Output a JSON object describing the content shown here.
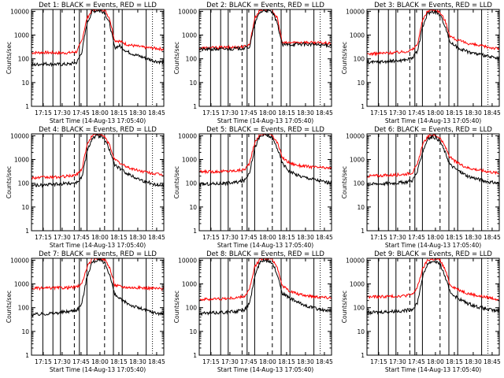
{
  "figure": {
    "x_tick_labels": [
      "17:15",
      "17:30",
      "17:45",
      "18:00",
      "18:15",
      "18:30",
      "18:45"
    ],
    "y_tick_labels": [
      "1",
      "10",
      "100",
      "1000",
      "10000"
    ],
    "ylabel": "Counts/sec",
    "xlabel": "Start Time (14-Aug-13 17:05:40)",
    "colors": {
      "events": "#000000",
      "lld": "#ff0000",
      "axes": "#000000",
      "background": "#ffffff"
    }
  },
  "chart_data": [
    {
      "type": "line",
      "title": "Det 1: BLACK = Events, RED = LLD",
      "xlabel": "Start Time (14-Aug-13 17:05:40)",
      "ylabel": "Counts/sec",
      "x_range_minutes_after_start": [
        0,
        105
      ],
      "y_range": [
        1,
        12000
      ],
      "y_scale": "log",
      "grid": false,
      "legend": "none",
      "events_x": [
        0,
        10,
        16,
        22,
        30,
        36,
        40,
        44,
        48,
        52,
        55,
        58,
        62,
        66,
        70,
        76,
        82,
        90,
        98,
        105
      ],
      "events_y": [
        55,
        62,
        60,
        58,
        60,
        70,
        200,
        3000,
        9500,
        11000,
        10500,
        9000,
        3000,
        300,
        350,
        200,
        150,
        110,
        80,
        70
      ],
      "lld_y": [
        180,
        185,
        180,
        175,
        180,
        200,
        600,
        5000,
        11000,
        12000,
        12000,
        11500,
        5000,
        600,
        550,
        400,
        350,
        300,
        280,
        250
      ]
    },
    {
      "type": "line",
      "title": "Det 2: BLACK = Events, RED = LLD",
      "xlabel": "Start Time (14-Aug-13 17:05:40)",
      "ylabel": "Counts/sec",
      "x_range_minutes_after_start": [
        0,
        105
      ],
      "y_range": [
        1,
        12000
      ],
      "y_scale": "log",
      "grid": false,
      "legend": "none",
      "events_x": [
        0,
        10,
        20,
        30,
        36,
        40,
        44,
        48,
        52,
        55,
        58,
        62,
        66,
        72,
        80,
        90,
        98,
        105
      ],
      "events_y": [
        250,
        250,
        260,
        270,
        280,
        320,
        3000,
        9000,
        11000,
        10500,
        9000,
        3000,
        380,
        400,
        420,
        400,
        380,
        360
      ],
      "lld_y": [
        280,
        290,
        300,
        310,
        330,
        400,
        5000,
        11000,
        12000,
        12000,
        11500,
        5000,
        450,
        480,
        500,
        480,
        460,
        440
      ]
    },
    {
      "type": "line",
      "title": "Det 3: BLACK = Events, RED = LLD",
      "xlabel": "Start Time (14-Aug-13 17:05:40)",
      "ylabel": "Counts/sec",
      "x_range_minutes_after_start": [
        0,
        105
      ],
      "y_range": [
        1,
        12000
      ],
      "y_scale": "log",
      "grid": false,
      "legend": "none",
      "events_x": [
        0,
        10,
        20,
        30,
        36,
        40,
        44,
        48,
        52,
        55,
        58,
        62,
        66,
        72,
        80,
        90,
        98,
        105
      ],
      "events_y": [
        70,
        75,
        80,
        90,
        110,
        200,
        2000,
        8000,
        10000,
        9000,
        7000,
        2500,
        500,
        300,
        200,
        150,
        120,
        100
      ],
      "lld_y": [
        160,
        170,
        180,
        200,
        240,
        400,
        4000,
        10000,
        12000,
        11000,
        9000,
        4000,
        900,
        600,
        450,
        350,
        300,
        260
      ]
    },
    {
      "type": "line",
      "title": "Det 4: BLACK = Events, RED = LLD",
      "xlabel": "Start Time (14-Aug-13 17:05:40)",
      "ylabel": "Counts/sec",
      "x_range_minutes_after_start": [
        0,
        105
      ],
      "y_range": [
        1,
        12000
      ],
      "y_scale": "log",
      "grid": false,
      "legend": "none",
      "events_x": [
        0,
        10,
        20,
        30,
        36,
        40,
        44,
        48,
        52,
        55,
        58,
        62,
        66,
        72,
        80,
        90,
        98,
        105
      ],
      "events_y": [
        80,
        85,
        90,
        100,
        110,
        180,
        2000,
        8000,
        10000,
        9000,
        7000,
        2500,
        600,
        350,
        200,
        120,
        90,
        80
      ],
      "lld_y": [
        170,
        175,
        180,
        200,
        230,
        400,
        4000,
        10000,
        12000,
        11000,
        9000,
        4000,
        1000,
        600,
        400,
        300,
        250,
        220
      ]
    },
    {
      "type": "line",
      "title": "Det 5: BLACK = Events, RED = LLD",
      "xlabel": "Start Time (14-Aug-13 17:05:40)",
      "ylabel": "Counts/sec",
      "x_range_minutes_after_start": [
        0,
        105
      ],
      "y_range": [
        1,
        12000
      ],
      "y_scale": "log",
      "grid": false,
      "legend": "none",
      "events_x": [
        0,
        10,
        20,
        30,
        36,
        40,
        44,
        48,
        52,
        55,
        58,
        62,
        66,
        72,
        80,
        90,
        98,
        105
      ],
      "events_y": [
        90,
        95,
        100,
        110,
        130,
        300,
        3000,
        9000,
        11000,
        10000,
        8000,
        3000,
        700,
        300,
        200,
        150,
        120,
        100
      ],
      "lld_y": [
        300,
        310,
        320,
        340,
        380,
        700,
        5000,
        11000,
        12000,
        12000,
        11000,
        5000,
        1200,
        700,
        550,
        480,
        450,
        420
      ]
    },
    {
      "type": "line",
      "title": "Det 6: BLACK = Events, RED = LLD",
      "xlabel": "Start Time (14-Aug-13 17:05:40)",
      "ylabel": "Counts/sec",
      "x_range_minutes_after_start": [
        0,
        105
      ],
      "y_range": [
        1,
        12000
      ],
      "y_scale": "log",
      "grid": false,
      "legend": "none",
      "events_x": [
        0,
        10,
        20,
        30,
        36,
        40,
        44,
        48,
        52,
        55,
        58,
        62,
        66,
        72,
        80,
        90,
        98,
        105
      ],
      "events_y": [
        90,
        95,
        100,
        110,
        130,
        300,
        2000,
        7000,
        9000,
        8000,
        6000,
        2000,
        600,
        350,
        200,
        140,
        110,
        100
      ],
      "lld_y": [
        200,
        210,
        220,
        240,
        280,
        600,
        4000,
        9000,
        11000,
        10000,
        8000,
        3500,
        1200,
        700,
        450,
        350,
        300,
        260
      ]
    },
    {
      "type": "line",
      "title": "Det 7: BLACK = Events, RED = LLD",
      "xlabel": "Start Time (14-Aug-13 17:05:40)",
      "ylabel": "Counts/sec",
      "x_range_minutes_after_start": [
        0,
        105
      ],
      "y_range": [
        1,
        12000
      ],
      "y_scale": "log",
      "grid": false,
      "legend": "none",
      "events_x": [
        0,
        10,
        20,
        30,
        36,
        40,
        44,
        48,
        52,
        55,
        58,
        62,
        66,
        72,
        80,
        90,
        98,
        105
      ],
      "events_y": [
        50,
        55,
        60,
        70,
        80,
        150,
        2000,
        8000,
        10000,
        9500,
        8000,
        2500,
        350,
        200,
        120,
        80,
        60,
        55
      ],
      "lld_y": [
        650,
        660,
        680,
        700,
        750,
        1000,
        5000,
        11000,
        12000,
        12000,
        11000,
        5000,
        900,
        750,
        700,
        680,
        650,
        620
      ]
    },
    {
      "type": "line",
      "title": "Det 8: BLACK = Events, RED = LLD",
      "xlabel": "Start Time (14-Aug-13 17:05:40)",
      "ylabel": "Counts/sec",
      "x_range_minutes_after_start": [
        0,
        105
      ],
      "y_range": [
        1,
        12000
      ],
      "y_scale": "log",
      "grid": false,
      "legend": "none",
      "events_x": [
        0,
        10,
        20,
        30,
        36,
        40,
        44,
        48,
        52,
        55,
        58,
        62,
        66,
        72,
        80,
        90,
        98,
        105
      ],
      "events_y": [
        55,
        60,
        65,
        70,
        80,
        150,
        2000,
        8000,
        10000,
        9500,
        8000,
        2500,
        400,
        250,
        150,
        100,
        80,
        70
      ],
      "lld_y": [
        220,
        230,
        240,
        260,
        300,
        600,
        5000,
        11000,
        12000,
        12000,
        11000,
        5000,
        800,
        500,
        350,
        300,
        280,
        260
      ]
    },
    {
      "type": "line",
      "title": "Det 9: BLACK = Events, RED = LLD",
      "xlabel": "Start Time (14-Aug-13 17:05:40)",
      "ylabel": "Counts/sec",
      "x_range_minutes_after_start": [
        0,
        105
      ],
      "y_range": [
        1,
        12000
      ],
      "y_scale": "log",
      "grid": false,
      "legend": "none",
      "events_x": [
        0,
        10,
        20,
        30,
        36,
        40,
        44,
        48,
        52,
        55,
        58,
        62,
        66,
        72,
        80,
        90,
        98,
        105
      ],
      "events_y": [
        60,
        65,
        70,
        75,
        85,
        160,
        1800,
        7000,
        9000,
        8500,
        7000,
        2000,
        450,
        250,
        150,
        100,
        80,
        70
      ],
      "lld_y": [
        280,
        290,
        300,
        320,
        360,
        700,
        4000,
        10000,
        11000,
        11000,
        10000,
        4000,
        900,
        600,
        400,
        300,
        260,
        220
      ]
    }
  ]
}
